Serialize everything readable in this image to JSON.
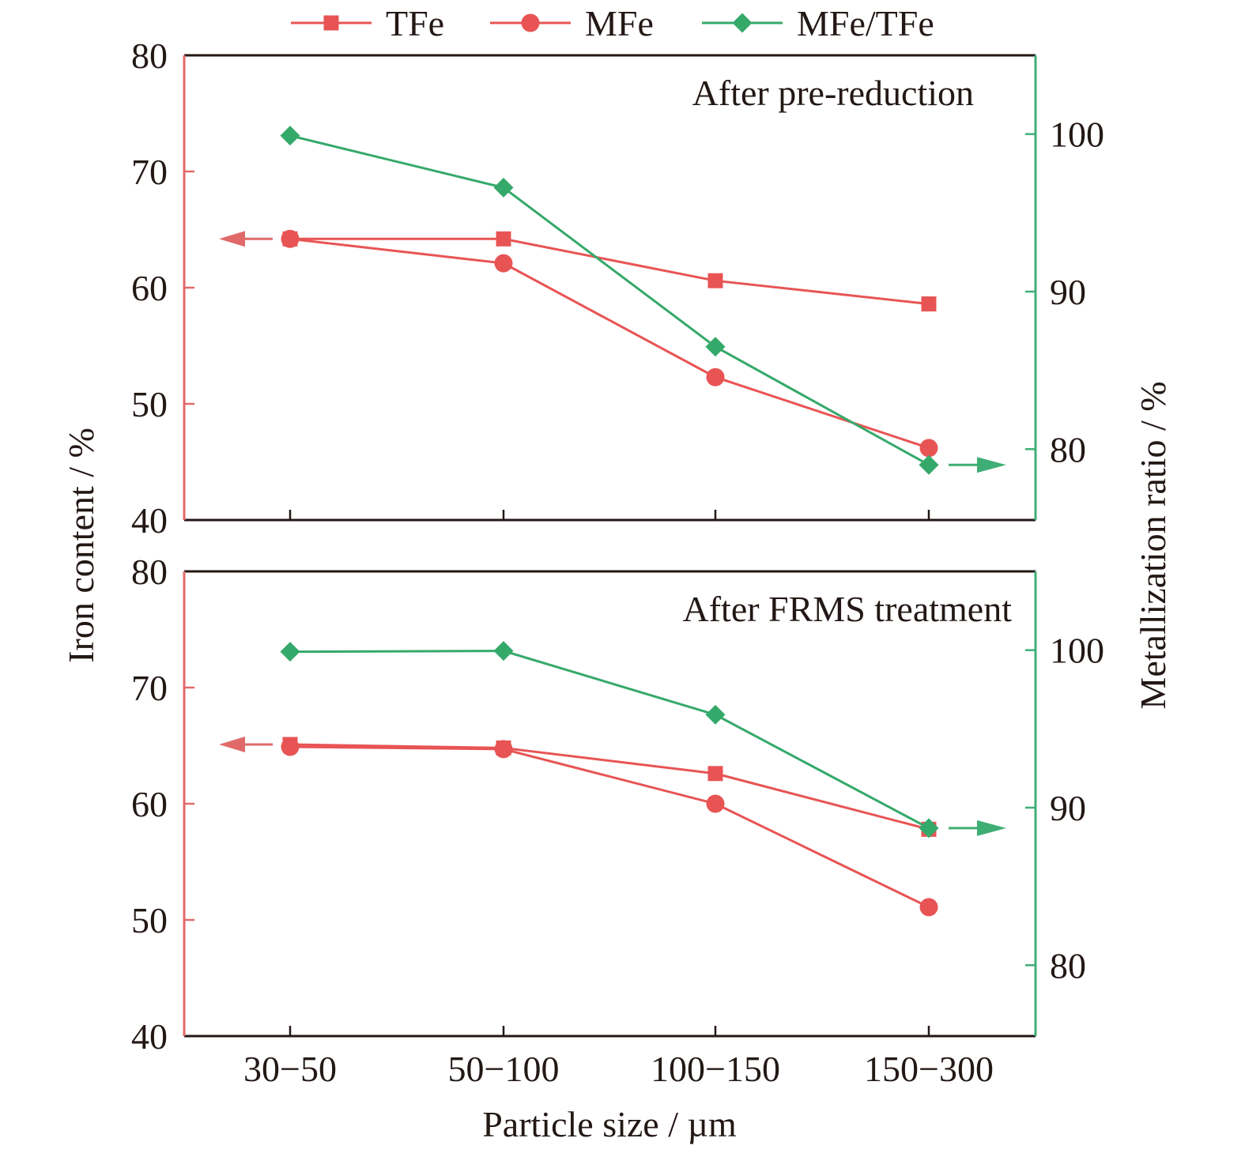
{
  "chart_data": {
    "type": "line",
    "title": "",
    "xlabel": "Particle size / µm",
    "ylabel_left": "Iron content / %",
    "ylabel_right": "Metallization ratio / %",
    "categories": [
      "30−50",
      "50−100",
      "100−150",
      "150−300"
    ],
    "legend": {
      "placement": "top-center",
      "entries": [
        {
          "name": "TFe",
          "marker": "square",
          "color": "#e85454"
        },
        {
          "name": "MFe",
          "marker": "circle",
          "color": "#e85454"
        },
        {
          "name": "MFe/TFe",
          "marker": "diamond",
          "color": "#35a96a"
        }
      ]
    },
    "left_axis": {
      "ylim": [
        40,
        80
      ],
      "ticks": [
        40,
        50,
        60,
        70,
        80
      ],
      "color": "#e06a6a"
    },
    "right_axis": {
      "ylim": [
        75.5,
        105
      ],
      "ticks": [
        80,
        90,
        100
      ],
      "color": "#3fae74"
    },
    "panels": [
      {
        "label": "After pre-reduction",
        "series": [
          {
            "name": "TFe",
            "axis": "left",
            "values": [
              64.2,
              64.2,
              60.6,
              58.6
            ]
          },
          {
            "name": "MFe",
            "axis": "left",
            "values": [
              64.2,
              62.1,
              52.3,
              46.2
            ]
          },
          {
            "name": "MFe/TFe",
            "axis": "right",
            "values": [
              99.9,
              96.6,
              86.5,
              79.0
            ]
          }
        ]
      },
      {
        "label": "After FRMS treatment",
        "series": [
          {
            "name": "TFe",
            "axis": "left",
            "values": [
              65.1,
              64.8,
              62.6,
              57.8
            ]
          },
          {
            "name": "MFe",
            "axis": "left",
            "values": [
              64.9,
              64.7,
              60.0,
              51.1
            ]
          },
          {
            "name": "MFe/TFe",
            "axis": "right",
            "values": [
              99.9,
              99.95,
              95.9,
              88.7
            ]
          }
        ]
      }
    ],
    "annotations": [
      "left arrow indicates left axis for TFe/MFe",
      "right arrow indicates right axis for MFe/TFe"
    ],
    "grid": false
  }
}
